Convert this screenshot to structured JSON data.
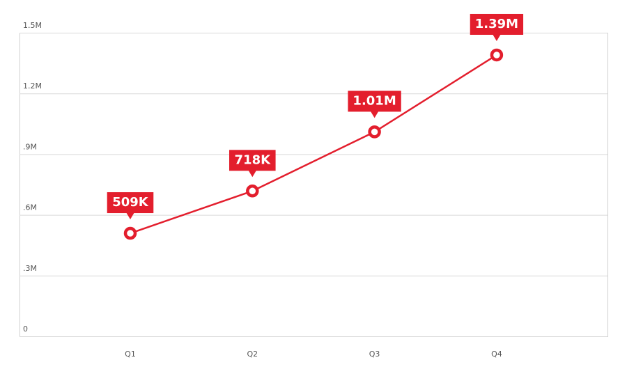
{
  "chart_data": {
    "type": "line",
    "categories": [
      "Q1",
      "Q2",
      "Q3",
      "Q4"
    ],
    "values": [
      509000,
      718000,
      1010000,
      1390000
    ],
    "value_labels": [
      "509K",
      "718K",
      "1.01M",
      "1.39M"
    ],
    "color": "#e31e2d",
    "ylim": [
      0,
      1500000
    ],
    "yticks": [
      0,
      {
        "value": 300000,
        "label": ".3M"
      },
      {
        "value": 600000,
        "label": ".6M"
      },
      {
        "value": 900000,
        "label": ".9M"
      },
      {
        "value": 1200000,
        "label": "1.2M"
      },
      {
        "value": 1500000,
        "label": "1.5M"
      }
    ],
    "grid": true
  }
}
